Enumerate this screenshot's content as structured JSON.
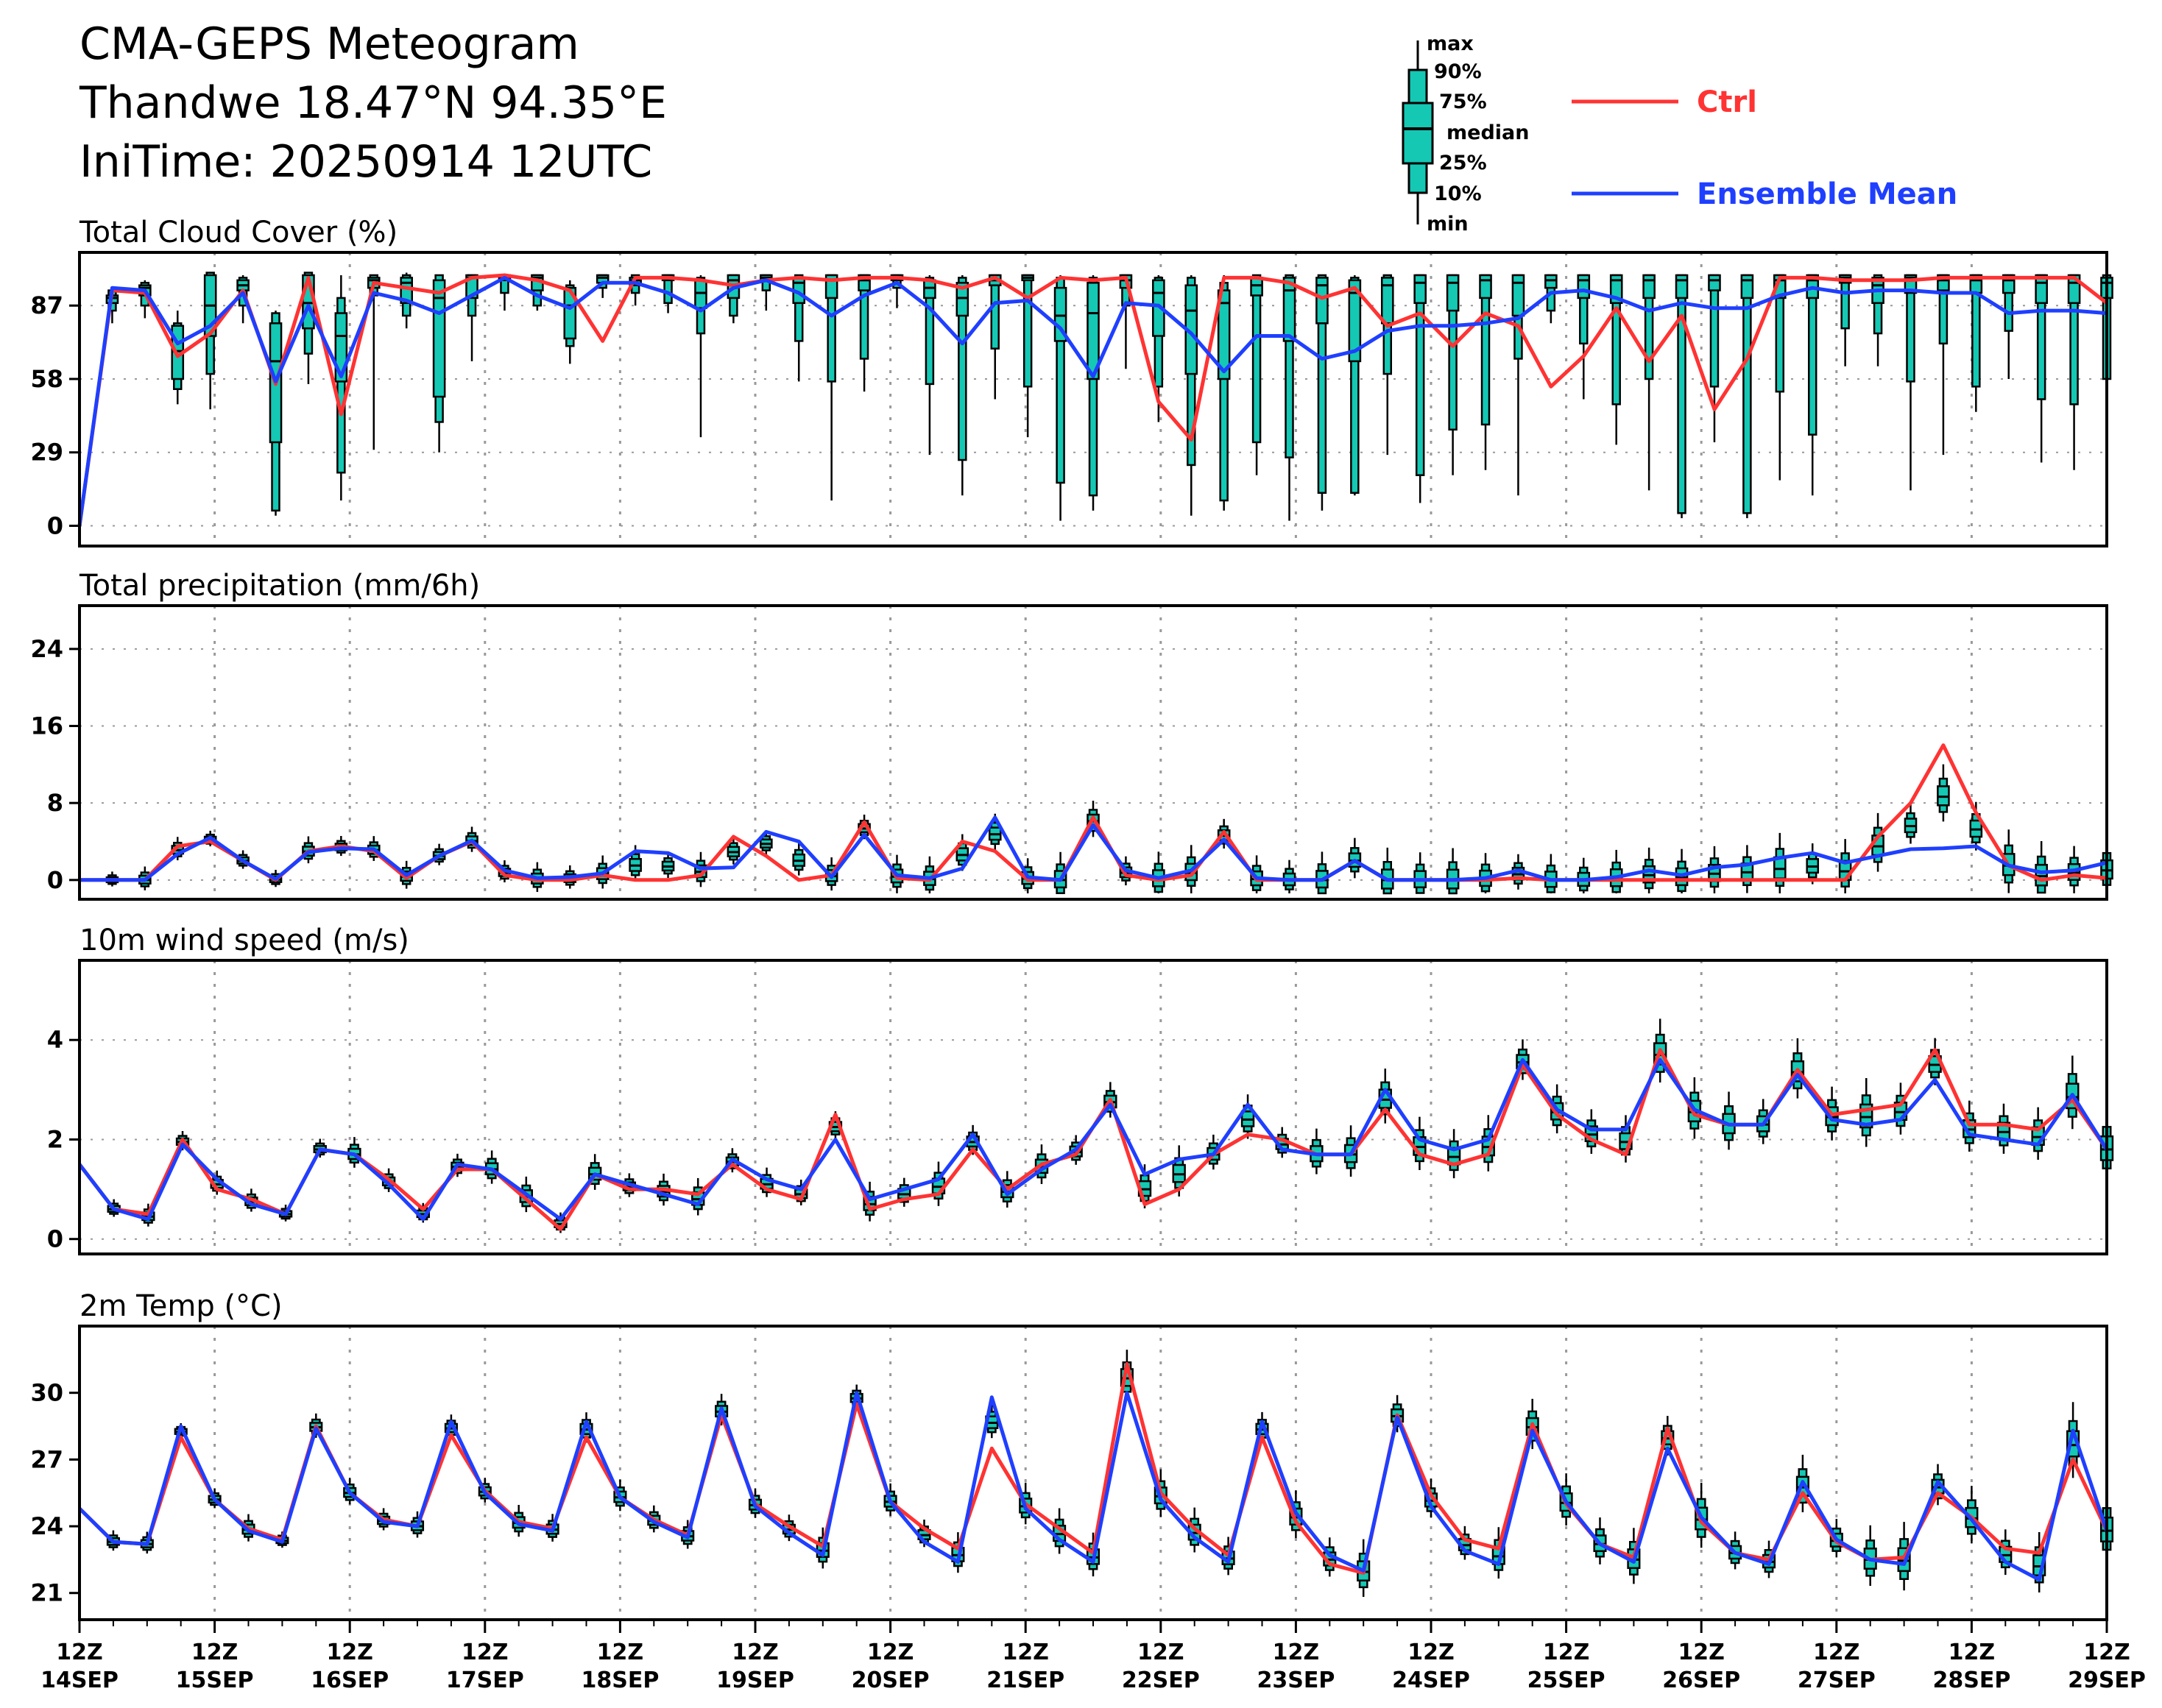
{
  "header": {
    "title": "CMA-GEPS Meteogram",
    "location": "Thandwe 18.47°N 94.35°E",
    "init_time": "IniTime: 20250914 12UTC"
  },
  "legend": {
    "box_labels": [
      "max",
      "90%",
      "75%",
      "median",
      "25%",
      "10%",
      "min"
    ],
    "ctrl_label": "Ctrl",
    "mean_label": "Ensemble Mean"
  },
  "colors": {
    "ctrl": "#ff3333",
    "mean": "#1f3fff",
    "box_fill": "#14c8b4",
    "box_edge": "#000000",
    "grid": "#999999"
  },
  "x_axis": {
    "ticks": [
      {
        "hour": "12Z",
        "date": "14SEP"
      },
      {
        "hour": "12Z",
        "date": "15SEP"
      },
      {
        "hour": "12Z",
        "date": "16SEP"
      },
      {
        "hour": "12Z",
        "date": "17SEP"
      },
      {
        "hour": "12Z",
        "date": "18SEP"
      },
      {
        "hour": "12Z",
        "date": "19SEP"
      },
      {
        "hour": "12Z",
        "date": "20SEP"
      },
      {
        "hour": "12Z",
        "date": "21SEP"
      },
      {
        "hour": "12Z",
        "date": "22SEP"
      },
      {
        "hour": "12Z",
        "date": "23SEP"
      },
      {
        "hour": "12Z",
        "date": "24SEP"
      },
      {
        "hour": "12Z",
        "date": "25SEP"
      },
      {
        "hour": "12Z",
        "date": "26SEP"
      },
      {
        "hour": "12Z",
        "date": "27SEP"
      },
      {
        "hour": "12Z",
        "date": "28SEP"
      },
      {
        "hour": "12Z",
        "date": "29SEP"
      }
    ]
  },
  "chart_data": [
    {
      "type": "box",
      "title": "Total Cloud Cover (%)",
      "ylim": [
        -8,
        108
      ],
      "yticks": [
        0,
        29,
        58,
        87
      ],
      "grid": true,
      "ctrl": [
        0,
        93,
        92,
        67,
        76,
        93,
        56,
        98,
        44,
        96,
        94,
        92,
        98,
        99,
        97,
        93,
        73,
        98,
        98,
        97,
        95,
        97,
        98,
        97,
        98,
        98,
        97,
        94,
        98,
        90,
        98,
        97,
        98,
        49,
        34,
        98,
        98,
        96,
        90,
        94,
        79,
        84,
        71,
        84,
        79,
        55,
        67,
        86,
        65,
        83,
        46,
        66,
        98,
        98,
        97,
        97,
        97,
        98,
        98,
        98,
        98,
        98,
        88
      ],
      "mean": [
        0,
        94,
        93,
        72,
        79,
        92,
        57,
        87,
        59,
        92,
        89,
        84,
        91,
        98,
        91,
        86,
        96,
        96,
        92,
        85,
        94,
        97,
        92,
        83,
        91,
        96,
        86,
        72,
        88,
        89,
        78,
        59,
        88,
        87,
        76,
        61,
        75,
        75,
        66,
        69,
        77,
        79,
        79,
        80,
        82,
        92,
        93,
        90,
        85,
        88,
        86,
        86,
        91,
        94,
        92,
        93,
        93,
        92,
        92,
        84,
        85,
        85,
        84
      ],
      "boxes": [
        {
          "q": [
            94,
            93,
            91,
            90,
            88,
            85,
            80
          ],
          "skip": [
            1
          ]
        },
        {
          "q": [
            97,
            96,
            95,
            94,
            91,
            87,
            82
          ],
          "skip": [
            2
          ]
        },
        {
          "q": [
            85,
            80,
            79,
            69,
            58,
            54,
            48
          ]
        },
        {
          "q": [
            100,
            100,
            99,
            87,
            75,
            60,
            46
          ]
        },
        {
          "q": [
            99,
            98,
            97,
            95,
            93,
            87,
            80
          ]
        },
        {
          "q": [
            85,
            84,
            80,
            65,
            33,
            6,
            4
          ]
        },
        {
          "q": [
            100,
            100,
            99,
            88,
            78,
            68,
            56
          ]
        },
        {
          "q": [
            99,
            90,
            84,
            75,
            57,
            21,
            10
          ]
        },
        {
          "q": [
            99,
            99,
            98,
            97,
            94,
            91,
            30
          ]
        },
        {
          "q": [
            100,
            99,
            98,
            96,
            88,
            83,
            78
          ]
        },
        {
          "q": [
            99,
            99,
            97,
            90,
            51,
            41,
            29
          ]
        },
        {
          "q": [
            99,
            99,
            99,
            98,
            90,
            83,
            65
          ]
        },
        {
          "q": [
            99,
            99,
            99,
            98,
            97,
            92,
            85
          ]
        },
        {
          "q": [
            99,
            99,
            99,
            98,
            93,
            87,
            85
          ]
        },
        {
          "q": [
            97,
            95,
            94,
            87,
            74,
            71,
            64
          ]
        },
        {
          "q": [
            99,
            99,
            99,
            98,
            96,
            94,
            90
          ]
        },
        {
          "q": [
            99,
            99,
            98,
            97,
            95,
            92,
            87
          ]
        },
        {
          "q": [
            99,
            99,
            99,
            98,
            97,
            88,
            84
          ]
        },
        {
          "q": [
            99,
            98,
            97,
            92,
            86,
            76,
            35
          ]
        },
        {
          "q": [
            99,
            99,
            99,
            97,
            90,
            83,
            80
          ]
        },
        {
          "q": [
            99,
            99,
            99,
            98,
            97,
            93,
            85
          ]
        },
        {
          "q": [
            99,
            99,
            98,
            96,
            88,
            73,
            57
          ]
        },
        {
          "q": [
            99,
            99,
            99,
            97,
            90,
            57,
            10
          ]
        },
        {
          "q": [
            99,
            99,
            99,
            97,
            93,
            66,
            53
          ]
        },
        {
          "q": [
            99,
            99,
            99,
            98,
            97,
            94,
            86
          ]
        },
        {
          "q": [
            99,
            98,
            97,
            94,
            90,
            56,
            28
          ]
        },
        {
          "q": [
            99,
            98,
            96,
            90,
            83,
            26,
            12
          ]
        },
        {
          "q": [
            99,
            99,
            99,
            97,
            95,
            70,
            50
          ]
        },
        {
          "q": [
            99,
            99,
            99,
            98,
            97,
            55,
            35
          ]
        },
        {
          "q": [
            99,
            98,
            94,
            83,
            73,
            17,
            2
          ]
        },
        {
          "q": [
            99,
            98,
            96,
            84,
            58,
            12,
            6
          ]
        },
        {
          "q": [
            99,
            99,
            99,
            97,
            94,
            87,
            62
          ]
        },
        {
          "q": [
            99,
            98,
            97,
            92,
            75,
            55,
            41
          ]
        },
        {
          "q": [
            99,
            98,
            95,
            85,
            60,
            24,
            4
          ]
        },
        {
          "q": [
            99,
            96,
            93,
            88,
            58,
            10,
            6
          ]
        },
        {
          "q": [
            99,
            99,
            98,
            95,
            91,
            33,
            20
          ]
        },
        {
          "q": [
            99,
            99,
            98,
            93,
            73,
            27,
            2
          ]
        },
        {
          "q": [
            99,
            99,
            98,
            95,
            80,
            13,
            6
          ]
        },
        {
          "q": [
            99,
            98,
            97,
            92,
            65,
            13,
            12
          ]
        },
        {
          "q": [
            99,
            99,
            98,
            95,
            80,
            60,
            28
          ]
        },
        {
          "q": [
            99,
            99,
            99,
            96,
            88,
            20,
            9
          ]
        },
        {
          "q": [
            99,
            99,
            99,
            96,
            85,
            38,
            20
          ]
        },
        {
          "q": [
            99,
            99,
            99,
            97,
            90,
            40,
            22
          ]
        },
        {
          "q": [
            99,
            99,
            99,
            96,
            83,
            66,
            12
          ]
        },
        {
          "q": [
            99,
            99,
            99,
            97,
            94,
            85,
            80
          ]
        },
        {
          "q": [
            99,
            99,
            99,
            97,
            90,
            72,
            50
          ]
        },
        {
          "q": [
            99,
            99,
            99,
            97,
            88,
            48,
            32
          ]
        },
        {
          "q": [
            99,
            99,
            99,
            97,
            90,
            58,
            14
          ]
        },
        {
          "q": [
            99,
            99,
            99,
            97,
            90,
            5,
            3
          ]
        },
        {
          "q": [
            99,
            99,
            99,
            97,
            93,
            55,
            33
          ]
        },
        {
          "q": [
            99,
            99,
            99,
            97,
            90,
            5,
            3
          ]
        },
        {
          "q": [
            99,
            99,
            99,
            97,
            90,
            53,
            18
          ]
        },
        {
          "q": [
            99,
            99,
            99,
            97,
            90,
            36,
            12
          ]
        },
        {
          "q": [
            99,
            99,
            99,
            98,
            96,
            78,
            63
          ]
        },
        {
          "q": [
            99,
            99,
            98,
            95,
            88,
            76,
            63
          ]
        },
        {
          "q": [
            99,
            99,
            99,
            98,
            92,
            57,
            14
          ]
        },
        {
          "q": [
            99,
            99,
            99,
            97,
            93,
            72,
            28
          ]
        },
        {
          "q": [
            99,
            99,
            99,
            97,
            92,
            55,
            45
          ]
        },
        {
          "q": [
            99,
            99,
            99,
            97,
            92,
            77,
            58
          ]
        },
        {
          "q": [
            99,
            99,
            99,
            96,
            88,
            50,
            25
          ]
        },
        {
          "q": [
            99,
            99,
            99,
            96,
            88,
            48,
            22
          ]
        },
        {
          "q": [
            99,
            99,
            98,
            96,
            90,
            58,
            33
          ]
        },
        {
          "q": [
            99,
            98,
            95,
            90,
            82,
            48,
            38
          ]
        }
      ]
    },
    {
      "type": "box",
      "title": "Total precipitation (mm/6h)",
      "ylim": [
        -2,
        28.5
      ],
      "yticks": [
        0,
        8,
        16,
        24
      ],
      "grid": true,
      "ctrl": [
        0,
        0,
        0,
        3.5,
        4.0,
        2.0,
        0,
        3.0,
        3.5,
        3.0,
        0.2,
        2.5,
        4.0,
        0.5,
        0,
        0,
        0.5,
        0,
        0,
        0.5,
        4.5,
        2.5,
        0,
        0.5,
        6.0,
        0.2,
        0,
        4.0,
        3.0,
        0,
        0,
        6.5,
        0.5,
        0,
        0.5,
        5.0,
        0,
        0,
        0,
        2.0,
        0,
        0,
        0,
        0,
        0.2,
        0,
        0,
        0,
        0,
        0,
        0,
        0,
        0,
        0,
        0,
        4.5,
        8.0,
        14.0,
        7.0,
        1.5,
        0,
        0.5,
        0.2
      ],
      "mean": [
        0,
        0,
        0,
        2.7,
        4.4,
        2.0,
        0.1,
        2.9,
        3.3,
        3.2,
        0.5,
        2.5,
        4.1,
        1.0,
        0.2,
        0.3,
        0.7,
        3.0,
        2.8,
        1.2,
        1.3,
        5.0,
        4.0,
        0.3,
        4.7,
        0.5,
        0.2,
        1.2,
        6.5,
        0.3,
        0,
        5.7,
        1.0,
        0.2,
        1.0,
        4.2,
        0.2,
        0,
        0,
        2.0,
        0,
        0,
        0,
        0.2,
        1.0,
        0,
        0,
        0.3,
        1.0,
        0.5,
        1.3,
        1.6,
        2.3,
        2.8,
        1.8,
        2.5,
        3.2,
        3.3,
        3.5,
        1.5,
        0.8,
        1.0,
        1.8
      ]
    },
    {
      "type": "box",
      "title": "10m wind speed (m/s)",
      "ylim": [
        -0.3,
        5.6
      ],
      "yticks": [
        0,
        2,
        4
      ],
      "grid": true,
      "ctrl": [
        1.5,
        0.6,
        0.5,
        2.0,
        1.0,
        0.8,
        0.5,
        1.8,
        1.7,
        1.2,
        0.6,
        1.4,
        1.4,
        0.8,
        0.2,
        1.3,
        1.0,
        1.0,
        0.9,
        1.5,
        1.0,
        0.8,
        2.5,
        0.6,
        0.8,
        0.9,
        1.8,
        1.0,
        1.5,
        1.7,
        2.8,
        0.7,
        1.0,
        1.7,
        2.1,
        2.0,
        1.7,
        1.7,
        2.6,
        1.7,
        1.5,
        1.7,
        3.5,
        2.5,
        2.0,
        1.7,
        3.8,
        2.5,
        2.3,
        2.3,
        3.4,
        2.5,
        2.6,
        2.7,
        3.8,
        2.3,
        2.3,
        2.2,
        2.8,
        1.8
      ],
      "mean": [
        1.5,
        0.6,
        0.4,
        1.9,
        1.2,
        0.7,
        0.5,
        1.8,
        1.7,
        1.1,
        0.4,
        1.5,
        1.4,
        0.9,
        0.4,
        1.3,
        1.1,
        0.9,
        0.7,
        1.6,
        1.2,
        1.0,
        2.0,
        0.8,
        1.0,
        1.2,
        2.1,
        0.9,
        1.4,
        1.8,
        2.7,
        1.3,
        1.6,
        1.7,
        2.7,
        1.8,
        1.7,
        1.7,
        3.0,
        2.0,
        1.8,
        2.0,
        3.6,
        2.6,
        2.2,
        2.2,
        3.6,
        2.6,
        2.3,
        2.3,
        3.3,
        2.4,
        2.3,
        2.4,
        3.2,
        2.1,
        2.0,
        1.9,
        2.9,
        1.8
      ]
    },
    {
      "type": "box",
      "title": "2m Temp (°C)",
      "ylim": [
        19.8,
        33.0
      ],
      "yticks": [
        21,
        24,
        27,
        30
      ],
      "grid": false,
      "ctrl": [
        24.8,
        23.3,
        23.2,
        28.0,
        25.2,
        23.9,
        23.4,
        28.5,
        25.5,
        24.3,
        24.0,
        28.1,
        25.6,
        24.2,
        23.9,
        28.0,
        25.3,
        24.3,
        23.6,
        29.0,
        25.0,
        24.0,
        23.1,
        29.5,
        25.1,
        23.9,
        23.0,
        27.5,
        25.0,
        23.9,
        22.8,
        31.3,
        25.5,
        23.9,
        22.7,
        28.0,
        24.2,
        22.3,
        21.9,
        29.0,
        25.4,
        23.4,
        23.0,
        28.6,
        25.0,
        23.2,
        22.6,
        28.4,
        24.2,
        22.8,
        22.5,
        25.5,
        23.3,
        22.5,
        22.6,
        25.5,
        24.4,
        23.0,
        22.8,
        27.0,
        23.8
      ],
      "mean": [
        24.8,
        23.3,
        23.2,
        28.5,
        25.2,
        23.8,
        23.3,
        28.4,
        25.5,
        24.2,
        24.0,
        28.7,
        25.5,
        24.1,
        23.8,
        28.7,
        25.3,
        24.2,
        23.5,
        29.3,
        24.9,
        23.7,
        22.7,
        30.0,
        25.1,
        23.3,
        22.4,
        29.8,
        24.8,
        23.4,
        22.4,
        30.0,
        25.2,
        23.5,
        22.4,
        28.7,
        24.6,
        22.7,
        22.0,
        28.9,
        24.9,
        22.9,
        22.3,
        28.3,
        25.1,
        23.2,
        22.4,
        27.5,
        24.4,
        22.8,
        22.3,
        26.0,
        23.4,
        22.5,
        22.3,
        26.0,
        24.3,
        22.4,
        21.6,
        28.3,
        23.8
      ]
    }
  ]
}
